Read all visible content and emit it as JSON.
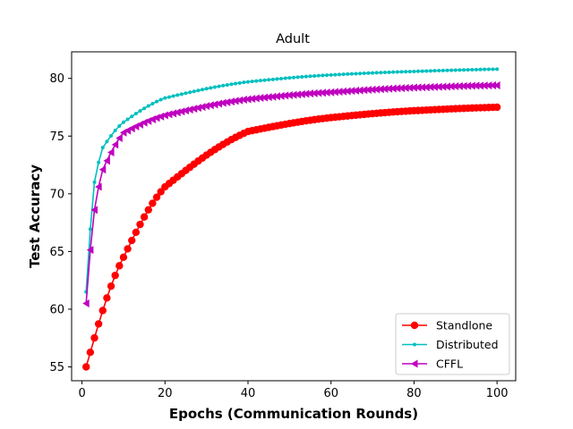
{
  "chart_data": {
    "type": "line",
    "title": "Adult",
    "xlabel": "Epochs (Communication Rounds)",
    "ylabel": "Test Accuracy",
    "xlim": [
      -2.5,
      104.5
    ],
    "ylim": [
      53.8,
      82.3
    ],
    "xticks": [
      0,
      20,
      40,
      60,
      80,
      100
    ],
    "yticks": [
      55,
      60,
      65,
      70,
      75,
      80
    ],
    "grid": false,
    "legend_position": "lower-right",
    "series": [
      {
        "name": "Standlone",
        "color": "#ff0000",
        "marker": "circle",
        "model": {
          "y0": 54.0,
          "ymax": 77.8,
          "k": 0.03,
          "noise": 0.0,
          "start": 55.0
        },
        "description_points": [
          [
            1,
            55.0
          ],
          [
            10,
            64.5
          ],
          [
            20,
            70.6
          ],
          [
            40,
            75.4
          ],
          [
            60,
            76.6
          ],
          [
            80,
            77.2
          ],
          [
            100,
            77.5
          ]
        ]
      },
      {
        "name": "Distributed",
        "color": "#00bfbf",
        "marker": "point",
        "model": {
          "y0": 61.5,
          "ymax": 81.0,
          "k": 0.033,
          "start": 61.5
        },
        "description_points": [
          [
            1,
            61.5
          ],
          [
            3,
            71.0
          ],
          [
            5,
            74.0
          ],
          [
            10,
            76.2
          ],
          [
            20,
            78.3
          ],
          [
            40,
            79.7
          ],
          [
            60,
            80.3
          ],
          [
            80,
            80.6
          ],
          [
            100,
            80.8
          ]
        ]
      },
      {
        "name": "CFFL",
        "color": "#bf00bf",
        "marker": "triangle-left",
        "model": {
          "y0": 60.5,
          "ymax": 79.5,
          "k": 0.034,
          "start": 60.5
        },
        "description_points": [
          [
            1,
            60.5
          ],
          [
            3,
            68.6
          ],
          [
            5,
            72.1
          ],
          [
            10,
            75.3
          ],
          [
            20,
            76.8
          ],
          [
            40,
            78.2
          ],
          [
            60,
            78.8
          ],
          [
            80,
            79.2
          ],
          [
            100,
            79.4
          ]
        ]
      }
    ]
  }
}
